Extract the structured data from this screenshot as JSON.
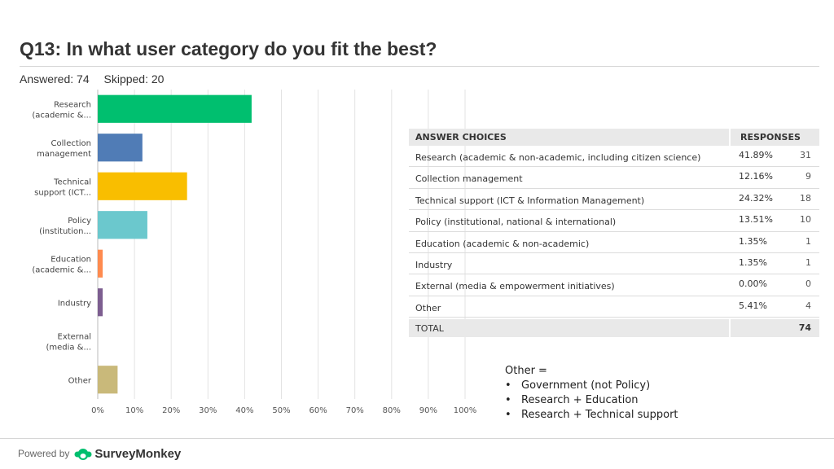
{
  "header": {
    "title": "Q13: In what user category do you fit the best?",
    "answered": "Answered: 74",
    "skipped": "Skipped: 20"
  },
  "chart_data": {
    "type": "bar",
    "orientation": "horizontal",
    "categories": [
      [
        "Research",
        "(academic &..."
      ],
      [
        "Collection",
        "management"
      ],
      [
        "Technical",
        "support (ICT..."
      ],
      [
        "Policy",
        "(institution..."
      ],
      [
        "Education",
        "(academic &..."
      ],
      [
        "Industry"
      ],
      [
        "External",
        "(media &..."
      ],
      [
        "Other"
      ]
    ],
    "values": [
      41.89,
      12.16,
      24.32,
      13.51,
      1.35,
      1.35,
      0.0,
      5.41
    ],
    "colors": [
      "#00bf6f",
      "#507cb6",
      "#f9be00",
      "#6bc8cd",
      "#ff8b4f",
      "#7d5e90",
      "#d25f90",
      "#c9b97a"
    ],
    "xlim": [
      0,
      100
    ],
    "xticks": [
      "0%",
      "10%",
      "20%",
      "30%",
      "40%",
      "50%",
      "60%",
      "70%",
      "80%",
      "90%",
      "100%"
    ],
    "grid": true
  },
  "table": {
    "header_choice": "ANSWER CHOICES",
    "header_responses": "RESPONSES",
    "rows": [
      {
        "choice": "Research (academic & non-academic, including citizen science)",
        "pct": "41.89%",
        "count": "31"
      },
      {
        "choice": "Collection management",
        "pct": "12.16%",
        "count": "9"
      },
      {
        "choice": "Technical support (ICT & Information Management)",
        "pct": "24.32%",
        "count": "18"
      },
      {
        "choice": "Policy (institutional, national & international)",
        "pct": "13.51%",
        "count": "10"
      },
      {
        "choice": "Education (academic & non-academic)",
        "pct": "1.35%",
        "count": "1"
      },
      {
        "choice": "Industry",
        "pct": "1.35%",
        "count": "1"
      },
      {
        "choice": "External (media & empowerment initiatives)",
        "pct": "0.00%",
        "count": "0"
      },
      {
        "choice": "Other",
        "pct": "5.41%",
        "count": "4"
      }
    ],
    "total_label": "TOTAL",
    "total_value": "74"
  },
  "note": {
    "heading": "Other =",
    "items": [
      "Government (not Policy)",
      "Research + Education",
      "Research + Technical support"
    ]
  },
  "footer": {
    "powered_by": "Powered by",
    "brand": "SurveyMonkey"
  }
}
